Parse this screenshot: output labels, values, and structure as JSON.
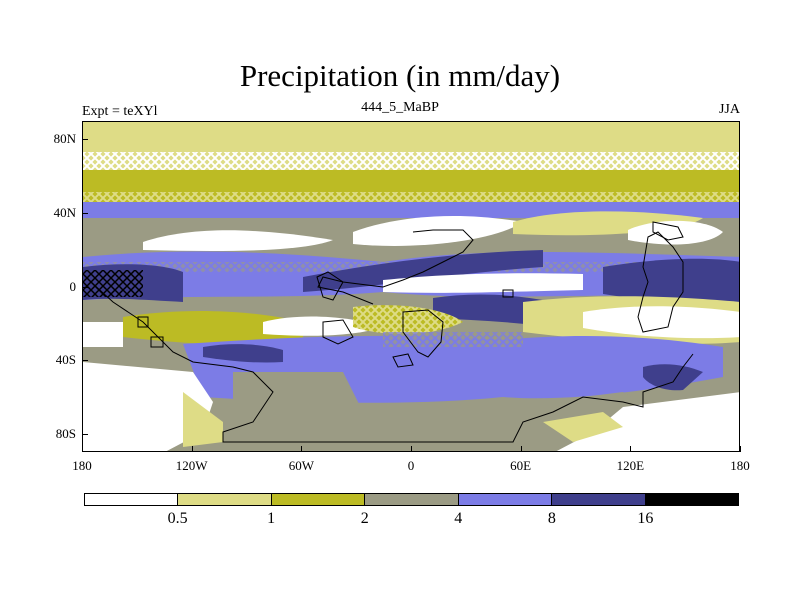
{
  "title": "Precipitation (in mm/day)",
  "left_label": "Expt = teXYl",
  "center_label": "444_5_MaBP",
  "right_label": "JJA",
  "map": {
    "projection": "cylindrical-equidistant",
    "lon_range": [
      -180,
      180
    ],
    "lat_range": [
      -90,
      90
    ],
    "ytick_labels": [
      {
        "label": "80N",
        "lat": 80
      },
      {
        "label": "40N",
        "lat": 40
      },
      {
        "label": "0",
        "lat": 0
      },
      {
        "label": "40S",
        "lat": -40
      },
      {
        "label": "80S",
        "lat": -80
      }
    ],
    "xtick_labels": [
      {
        "label": "180",
        "lon": -180
      },
      {
        "label": "120W",
        "lon": -120
      },
      {
        "label": "60W",
        "lon": -60
      },
      {
        "label": "0",
        "lon": 0
      },
      {
        "label": "60E",
        "lon": 60
      },
      {
        "label": "120E",
        "lon": 120
      },
      {
        "label": "180",
        "lon": 180
      }
    ]
  },
  "colorbar": {
    "colors": [
      "#ffffff",
      "#dedc86",
      "#bcbb24",
      "#9b9b84",
      "#7c7ce6",
      "#3f3f8c",
      "#000000"
    ],
    "labels": [
      "0.5",
      "1",
      "2",
      "4",
      "8",
      "16"
    ]
  },
  "chart_data": {
    "type": "heatmap",
    "title": "Precipitation (in mm/day)",
    "subtitle": "444_5_MaBP",
    "levels": [
      0.5,
      1,
      2,
      4,
      8,
      16
    ],
    "xlim": [
      -180,
      180
    ],
    "ylim": [
      -90,
      90
    ]
  }
}
